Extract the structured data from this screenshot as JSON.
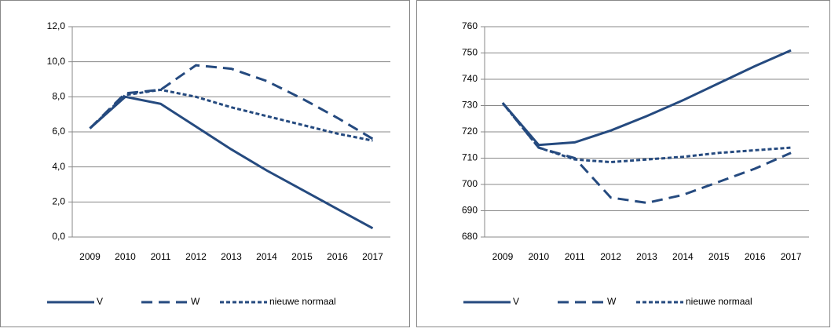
{
  "chart_data": [
    {
      "type": "line",
      "categories": [
        "2009",
        "2010",
        "2011",
        "2012",
        "2013",
        "2014",
        "2015",
        "2016",
        "2017"
      ],
      "series": [
        {
          "name": "V",
          "color": "#254a7f",
          "values": [
            6.2,
            8.0,
            7.6,
            6.3,
            5.0,
            3.8,
            2.7,
            1.6,
            0.5
          ]
        },
        {
          "name": "W",
          "color": "#254a7f",
          "values": [
            6.2,
            8.2,
            8.4,
            9.8,
            9.6,
            8.9,
            7.9,
            6.8,
            5.6
          ]
        },
        {
          "name": "nieuwe normaal",
          "color": "#254a7f",
          "values": [
            6.2,
            8.1,
            8.4,
            8.0,
            7.4,
            6.9,
            6.4,
            5.9,
            5.5
          ]
        }
      ],
      "ylim": [
        0,
        12
      ],
      "yticks": [
        {
          "value": 0,
          "label": "0,0"
        },
        {
          "value": 2,
          "label": "2,0"
        },
        {
          "value": 4,
          "label": "4,0"
        },
        {
          "value": 6,
          "label": "6,0"
        },
        {
          "value": 8,
          "label": "8,0"
        },
        {
          "value": 10,
          "label": "10,0"
        },
        {
          "value": 12,
          "label": "12,0"
        }
      ],
      "grid": true,
      "legend": "bottom"
    },
    {
      "type": "line",
      "categories": [
        "2009",
        "2010",
        "2011",
        "2012",
        "2013",
        "2014",
        "2015",
        "2016",
        "2017"
      ],
      "series": [
        {
          "name": "V",
          "color": "#254a7f",
          "values": [
            731,
            715,
            716,
            720.5,
            726,
            732,
            738.5,
            745,
            751
          ]
        },
        {
          "name": "W",
          "color": "#254a7f",
          "values": [
            731,
            714,
            710,
            695,
            693,
            696,
            701,
            706,
            712
          ]
        },
        {
          "name": "nieuwe normaal",
          "color": "#254a7f",
          "values": [
            731,
            714,
            709.5,
            708.5,
            709.5,
            710.5,
            712,
            713,
            714
          ]
        }
      ],
      "ylim": [
        680,
        760
      ],
      "yticks": [
        680,
        690,
        700,
        710,
        720,
        730,
        740,
        750,
        760
      ],
      "grid": true,
      "legend": "bottom"
    }
  ]
}
